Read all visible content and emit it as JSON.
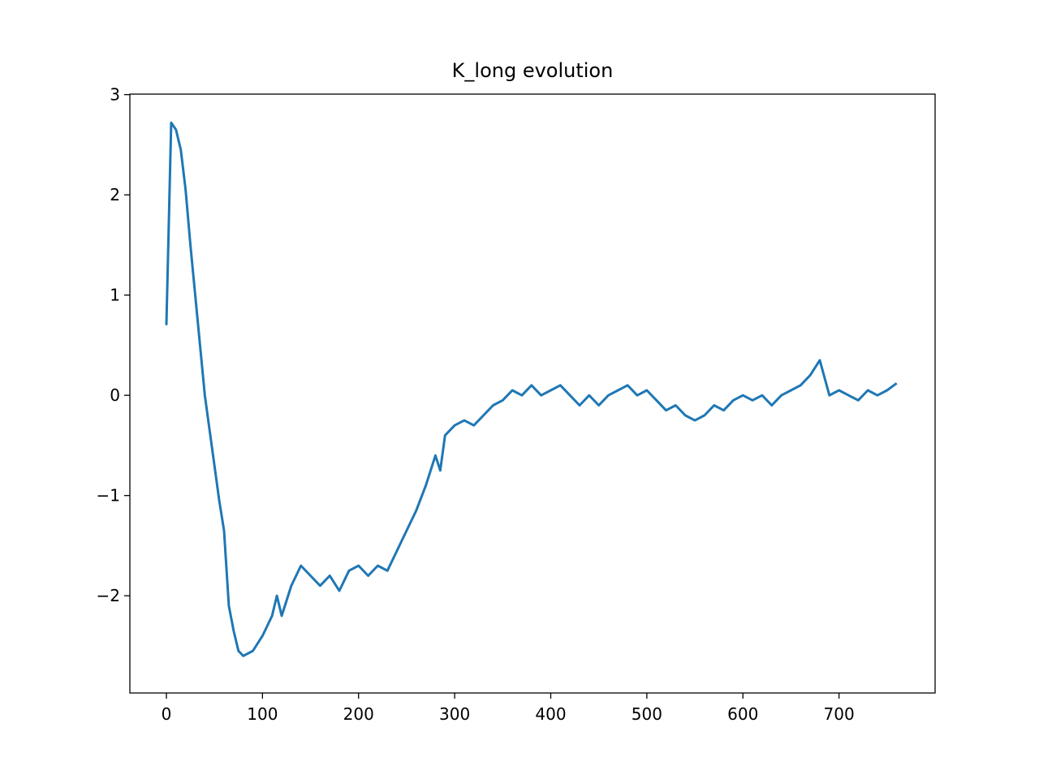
{
  "chart_data": {
    "type": "line",
    "title": "K_long evolution",
    "x": [
      0,
      5,
      10,
      15,
      20,
      25,
      30,
      35,
      40,
      45,
      50,
      55,
      60,
      65,
      70,
      75,
      80,
      90,
      100,
      110,
      115,
      120,
      130,
      140,
      150,
      160,
      170,
      180,
      190,
      200,
      210,
      220,
      230,
      240,
      250,
      260,
      270,
      280,
      285,
      290,
      300,
      310,
      320,
      330,
      340,
      350,
      360,
      370,
      380,
      390,
      400,
      410,
      420,
      430,
      440,
      450,
      460,
      470,
      480,
      490,
      500,
      510,
      520,
      530,
      540,
      550,
      560,
      570,
      580,
      590,
      600,
      610,
      620,
      630,
      640,
      650,
      660,
      670,
      680,
      690,
      700,
      710,
      720,
      730,
      740,
      750,
      760
    ],
    "series": [
      {
        "color": "#1f77b4",
        "values": [
          0.7,
          2.72,
          2.65,
          2.45,
          2.05,
          1.5,
          1.0,
          0.5,
          0.0,
          -0.35,
          -0.7,
          -1.05,
          -1.35,
          -2.1,
          -2.35,
          -2.55,
          -2.6,
          -2.55,
          -2.4,
          -2.2,
          -2.0,
          -2.2,
          -1.9,
          -1.7,
          -1.8,
          -1.9,
          -1.8,
          -1.95,
          -1.75,
          -1.7,
          -1.8,
          -1.7,
          -1.75,
          -1.55,
          -1.35,
          -1.15,
          -0.9,
          -0.6,
          -0.75,
          -0.4,
          -0.3,
          -0.25,
          -0.3,
          -0.2,
          -0.1,
          -0.05,
          0.05,
          0.0,
          0.1,
          0.0,
          0.05,
          0.1,
          0.0,
          -0.1,
          0.0,
          -0.1,
          0.0,
          0.05,
          0.1,
          0.0,
          0.05,
          -0.05,
          -0.15,
          -0.1,
          -0.2,
          -0.25,
          -0.2,
          -0.1,
          -0.15,
          -0.05,
          0.0,
          -0.05,
          0.0,
          -0.1,
          0.0,
          0.05,
          0.1,
          0.2,
          0.35,
          0.0,
          0.05,
          0.0,
          -0.05,
          0.05,
          0.0,
          0.05,
          0.12
        ]
      }
    ],
    "xlim": [
      -38,
      800
    ],
    "ylim": [
      -2.97,
      3.005
    ],
    "xticks": [
      0,
      100,
      200,
      300,
      400,
      500,
      600,
      700
    ],
    "yticks": [
      {
        "value": -2,
        "label": "−2"
      },
      {
        "value": -1,
        "label": "−1"
      },
      0,
      1,
      2,
      3
    ]
  }
}
